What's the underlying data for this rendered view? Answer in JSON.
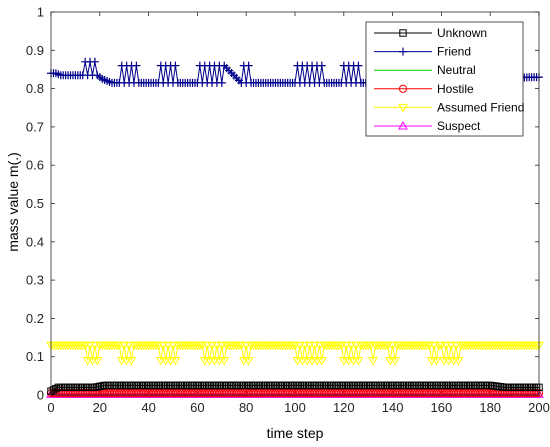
{
  "chart_data": {
    "type": "line",
    "xlabel": "time step",
    "ylabel": "mass value m(.)",
    "xlim": [
      0,
      200
    ],
    "ylim": [
      0,
      1
    ],
    "xticks": [
      "0",
      "20",
      "40",
      "60",
      "80",
      "100",
      "120",
      "140",
      "160",
      "180",
      "200"
    ],
    "yticks": [
      "0",
      "0.1",
      "0.2",
      "0.3",
      "0.4",
      "0.5",
      "0.6",
      "0.7",
      "0.8",
      "0.9",
      "1"
    ],
    "grid": false,
    "legend_position": "top-right",
    "series": [
      {
        "name": "Unknown",
        "color": "#000000",
        "marker": "square",
        "x": [
          0,
          3,
          10,
          18,
          22,
          100,
          180,
          186,
          200
        ],
        "y": [
          0.01,
          0.02,
          0.02,
          0.02,
          0.025,
          0.025,
          0.025,
          0.02,
          0.02
        ]
      },
      {
        "name": "Friend",
        "color": "#00008b",
        "marker": "plus",
        "x": [
          0,
          2,
          4,
          10,
          13,
          14,
          15,
          16,
          17,
          18,
          19,
          20,
          21,
          23,
          25,
          28,
          29,
          30,
          31,
          32,
          33,
          34,
          35,
          36,
          44,
          45,
          46,
          47,
          48,
          49,
          50,
          51,
          52,
          60,
          61,
          62,
          63,
          64,
          65,
          66,
          67,
          68,
          69,
          70,
          71,
          78,
          79,
          80,
          81,
          82,
          83,
          100,
          101,
          102,
          103,
          104,
          105,
          106,
          107,
          108,
          109,
          110,
          111,
          112,
          113,
          119,
          120,
          121,
          122,
          123,
          124,
          125,
          126,
          127,
          128,
          198,
          200
        ],
        "y": [
          0.84,
          0.84,
          0.835,
          0.835,
          0.835,
          0.87,
          0.835,
          0.87,
          0.835,
          0.87,
          0.835,
          0.83,
          0.825,
          0.82,
          0.815,
          0.815,
          0.86,
          0.815,
          0.86,
          0.815,
          0.86,
          0.815,
          0.86,
          0.815,
          0.815,
          0.86,
          0.815,
          0.86,
          0.815,
          0.86,
          0.815,
          0.86,
          0.815,
          0.815,
          0.86,
          0.815,
          0.86,
          0.815,
          0.86,
          0.815,
          0.86,
          0.815,
          0.86,
          0.815,
          0.86,
          0.815,
          0.86,
          0.815,
          0.86,
          0.815,
          0.815,
          0.815,
          0.86,
          0.815,
          0.86,
          0.815,
          0.86,
          0.815,
          0.86,
          0.815,
          0.86,
          0.815,
          0.86,
          0.815,
          0.815,
          0.815,
          0.86,
          0.815,
          0.86,
          0.815,
          0.86,
          0.815,
          0.86,
          0.815,
          0.815,
          0.83,
          0.83
        ]
      },
      {
        "name": "Neutral",
        "color": "#00cc00",
        "marker": "none",
        "x": [
          0,
          200
        ],
        "y": [
          0.003,
          0.003
        ]
      },
      {
        "name": "Hostile",
        "color": "#ff0000",
        "marker": "circle",
        "x": [
          0,
          200
        ],
        "y": [
          0.005,
          0.005
        ]
      },
      {
        "name": "Assumed Friend",
        "color": "#ffff00",
        "marker": "triangle-down",
        "x": [
          0,
          14,
          15,
          16,
          17,
          18,
          19,
          20,
          28,
          29,
          30,
          31,
          32,
          33,
          34,
          36,
          44,
          45,
          46,
          47,
          48,
          49,
          50,
          51,
          52,
          62,
          63,
          64,
          65,
          66,
          67,
          68,
          69,
          70,
          71,
          72,
          78,
          79,
          80,
          81,
          82,
          100,
          101,
          102,
          103,
          104,
          105,
          106,
          107,
          108,
          109,
          110,
          111,
          112,
          113,
          119,
          120,
          121,
          122,
          123,
          124,
          125,
          126,
          127,
          128,
          131,
          132,
          133,
          134,
          138,
          139,
          140,
          141,
          142,
          155,
          156,
          157,
          158,
          159,
          160,
          161,
          162,
          163,
          164,
          165,
          166,
          167,
          168,
          200
        ],
        "y": [
          0.13,
          0.13,
          0.09,
          0.13,
          0.09,
          0.13,
          0.09,
          0.13,
          0.13,
          0.09,
          0.13,
          0.09,
          0.13,
          0.09,
          0.13,
          0.13,
          0.13,
          0.09,
          0.13,
          0.09,
          0.13,
          0.09,
          0.13,
          0.09,
          0.13,
          0.13,
          0.09,
          0.13,
          0.09,
          0.13,
          0.09,
          0.13,
          0.09,
          0.13,
          0.09,
          0.13,
          0.13,
          0.09,
          0.13,
          0.09,
          0.13,
          0.13,
          0.09,
          0.13,
          0.09,
          0.13,
          0.09,
          0.13,
          0.09,
          0.13,
          0.09,
          0.13,
          0.09,
          0.13,
          0.13,
          0.13,
          0.09,
          0.13,
          0.09,
          0.13,
          0.09,
          0.13,
          0.09,
          0.13,
          0.13,
          0.13,
          0.09,
          0.13,
          0.13,
          0.13,
          0.09,
          0.13,
          0.09,
          0.13,
          0.13,
          0.09,
          0.13,
          0.09,
          0.13,
          0.13,
          0.09,
          0.13,
          0.09,
          0.13,
          0.09,
          0.13,
          0.09,
          0.13,
          0.13
        ]
      },
      {
        "name": "Suspect",
        "color": "#ff00ff",
        "marker": "triangle-up",
        "x": [
          0,
          200
        ],
        "y": [
          0.002,
          0.002
        ]
      }
    ]
  }
}
